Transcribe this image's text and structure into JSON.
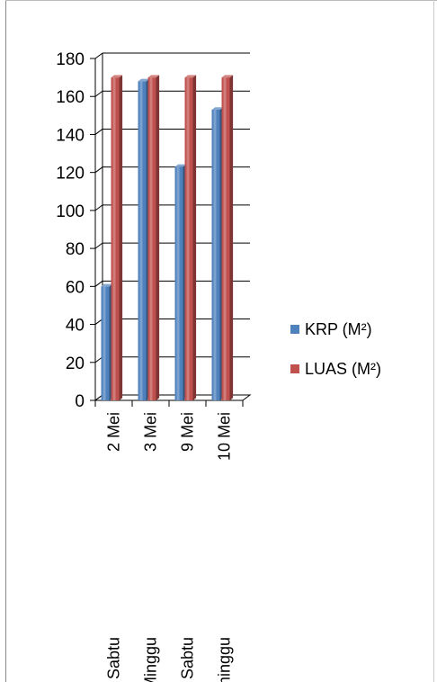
{
  "chart_data": {
    "type": "bar",
    "categories": [
      {
        "date": "2 Mei",
        "day": "Sabtu"
      },
      {
        "date": "3 Mei",
        "day": "Minggu"
      },
      {
        "date": "9 Mei",
        "day": "Sabtu"
      },
      {
        "date": "10 Mei",
        "day": "minggu"
      }
    ],
    "series": [
      {
        "name": "KRP (M²)",
        "color": "#4f81bd",
        "values": [
          60,
          168,
          123,
          153
        ]
      },
      {
        "name": "LUAS  (M²)",
        "color": "#c0504d",
        "values": [
          170,
          170,
          170,
          170
        ]
      }
    ],
    "ylim": [
      0,
      180
    ],
    "yticks": [
      0,
      20,
      40,
      60,
      80,
      100,
      120,
      140,
      160,
      180
    ],
    "grid": true,
    "legend": "right",
    "style": "3d-clustered-column"
  }
}
